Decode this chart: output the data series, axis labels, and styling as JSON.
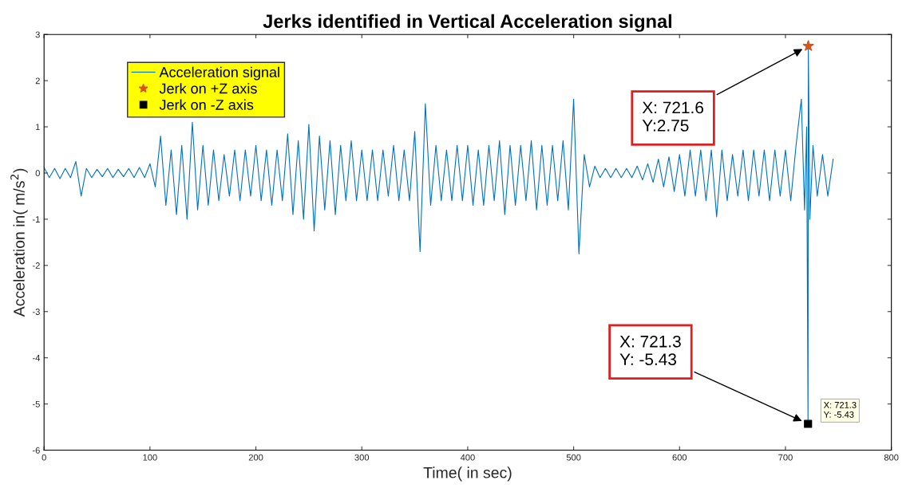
{
  "chart_data": {
    "type": "line",
    "title": "Jerks identified in Vertical Acceleration signal",
    "xlabel": "Time( in sec)",
    "ylabel": "Acceleration in( m/s$^{2}$)",
    "xlim": [
      0,
      800
    ],
    "xticks": [
      0,
      100,
      200,
      300,
      400,
      500,
      600,
      700,
      800
    ],
    "ylim": [
      -6,
      3
    ],
    "yticks": [
      -6,
      -5,
      -4,
      -3,
      -2,
      -1,
      0,
      1,
      2,
      3
    ],
    "grid": false,
    "legend": "top left",
    "series": [
      {
        "name": "Acceleration signal",
        "color": "#0072bd",
        "marker": "none",
        "line_style": "solid",
        "x": [
          0,
          5,
          10,
          15,
          20,
          25,
          30,
          35,
          40,
          45,
          50,
          55,
          60,
          65,
          70,
          75,
          80,
          85,
          90,
          95,
          100,
          105,
          110,
          115,
          120,
          125,
          130,
          135,
          140,
          145,
          150,
          155,
          160,
          165,
          170,
          175,
          180,
          185,
          190,
          195,
          200,
          205,
          210,
          215,
          220,
          225,
          230,
          235,
          240,
          245,
          250,
          255,
          260,
          265,
          270,
          275,
          280,
          285,
          290,
          295,
          300,
          305,
          310,
          315,
          320,
          325,
          330,
          335,
          340,
          345,
          350,
          355,
          360,
          365,
          370,
          375,
          380,
          385,
          390,
          395,
          400,
          405,
          410,
          415,
          420,
          425,
          430,
          435,
          440,
          445,
          450,
          455,
          460,
          465,
          470,
          475,
          480,
          485,
          490,
          495,
          500,
          505,
          510,
          515,
          520,
          525,
          530,
          535,
          540,
          545,
          550,
          555,
          560,
          565,
          570,
          575,
          580,
          585,
          590,
          595,
          600,
          605,
          610,
          615,
          620,
          625,
          630,
          635,
          640,
          645,
          650,
          655,
          660,
          665,
          670,
          675,
          680,
          685,
          690,
          695,
          700,
          705,
          710,
          715,
          718,
          720,
          721.3,
          721.6,
          723,
          726,
          730,
          735,
          740,
          745
        ],
        "values": [
          0.12,
          -0.1,
          0.1,
          -0.12,
          0.1,
          -0.1,
          0.25,
          -0.5,
          0.1,
          -0.1,
          0.08,
          -0.08,
          0.1,
          -0.1,
          0.08,
          -0.08,
          0.1,
          -0.1,
          0.12,
          -0.1,
          0.2,
          -0.3,
          0.8,
          -0.7,
          0.5,
          -0.9,
          0.6,
          -1.0,
          1.1,
          -0.8,
          0.6,
          -0.7,
          0.5,
          -0.6,
          0.4,
          -0.5,
          0.5,
          -0.6,
          0.5,
          -0.5,
          0.6,
          -0.6,
          0.5,
          -0.7,
          0.5,
          -0.6,
          0.85,
          -0.9,
          0.7,
          -1.0,
          1.05,
          -1.25,
          0.8,
          -0.8,
          0.7,
          -0.9,
          0.6,
          -0.6,
          0.7,
          -0.6,
          0.5,
          -0.6,
          0.5,
          -0.6,
          0.5,
          -0.5,
          0.6,
          -0.6,
          0.5,
          -0.6,
          0.9,
          -1.7,
          1.5,
          -0.7,
          0.6,
          -0.6,
          0.5,
          -0.6,
          0.6,
          -0.6,
          0.6,
          -0.7,
          0.5,
          -0.7,
          0.6,
          -0.6,
          0.7,
          -0.9,
          0.6,
          -0.7,
          0.6,
          -0.6,
          0.7,
          -0.8,
          0.6,
          -0.7,
          0.6,
          -0.6,
          0.7,
          -0.8,
          1.6,
          -1.75,
          0.4,
          -0.3,
          0.15,
          -0.1,
          0.1,
          -0.1,
          0.1,
          -0.1,
          0.1,
          -0.1,
          0.15,
          -0.15,
          0.2,
          -0.2,
          0.3,
          -0.3,
          0.35,
          -0.4,
          0.4,
          -0.5,
          0.5,
          -0.5,
          0.5,
          -0.6,
          0.5,
          -0.95,
          0.5,
          -0.6,
          0.4,
          -0.5,
          0.5,
          -0.6,
          0.5,
          -0.5,
          0.5,
          -0.6,
          0.5,
          -0.5,
          0.5,
          -0.6,
          0.6,
          1.6,
          -0.8,
          1.0,
          -5.43,
          2.75,
          -1.0,
          0.6,
          -0.5,
          0.4,
          -0.5,
          0.3
        ]
      },
      {
        "name": "Jerk on +Z axis",
        "type": "scatter",
        "color": "#d95319",
        "marker": "star",
        "x": [
          721.6
        ],
        "values": [
          2.75
        ]
      },
      {
        "name": "Jerk on -Z axis",
        "type": "scatter",
        "color": "#000000",
        "marker": "square",
        "x": [
          721.3
        ],
        "values": [
          -5.43
        ]
      }
    ],
    "annotations": [
      "X: 721.6\nY:2.75",
      "X: 721.3\nY: -5.43",
      "X: 721.3\nY: -5.43"
    ]
  }
}
